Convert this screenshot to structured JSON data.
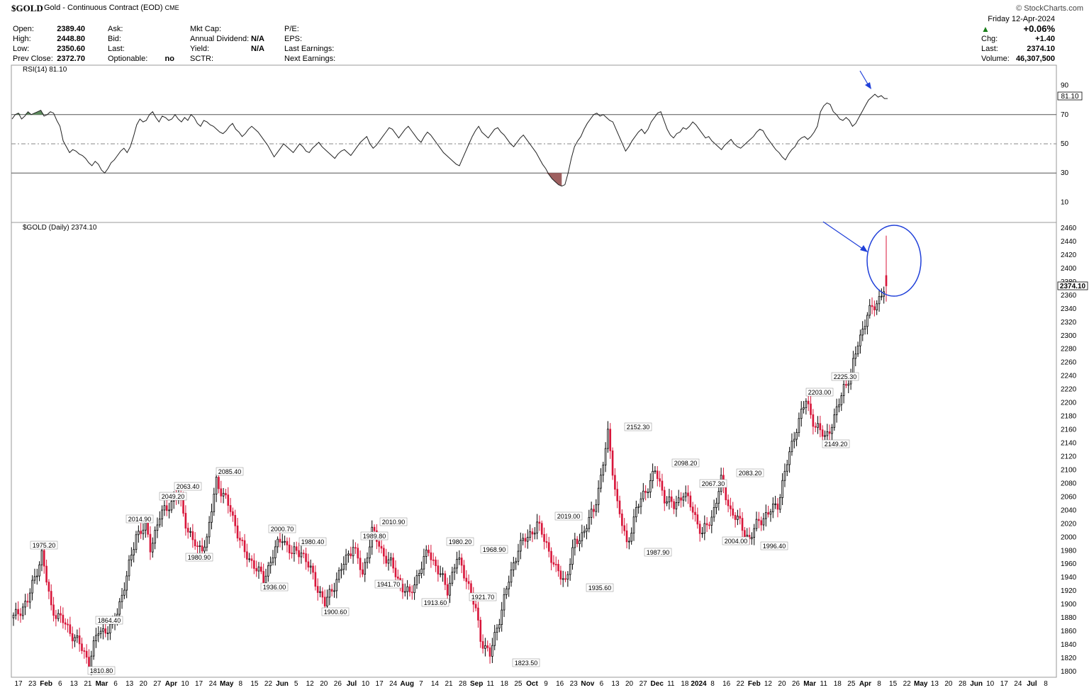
{
  "header": {
    "symbol": "$GOLD",
    "description": "Gold - Continuous Contract (EOD)",
    "exchange": "CME",
    "credit": "© StockCharts.com",
    "col1": [
      {
        "label": "Open:",
        "value": "2389.40"
      },
      {
        "label": "High:",
        "value": "2448.80"
      },
      {
        "label": "Low:",
        "value": "2350.60"
      },
      {
        "label": "Prev Close:",
        "value": "2372.70"
      }
    ],
    "col2": [
      {
        "label": "Ask:",
        "value": ""
      },
      {
        "label": "Bid:",
        "value": ""
      },
      {
        "label": "Last:",
        "value": ""
      },
      {
        "label": "Optionable:",
        "value": "no"
      }
    ],
    "col3": [
      {
        "label": "Mkt Cap:",
        "value": ""
      },
      {
        "label": "Annual Dividend:",
        "value": "N/A"
      },
      {
        "label": "Yield:",
        "value": "N/A"
      },
      {
        "label": "SCTR:",
        "value": ""
      }
    ],
    "col4": [
      {
        "label": "P/E:",
        "value": ""
      },
      {
        "label": "EPS:",
        "value": ""
      },
      {
        "label": "Last Earnings:",
        "value": ""
      },
      {
        "label": "Next Earnings:",
        "value": ""
      }
    ],
    "right": {
      "date": "Friday  12-Apr-2024",
      "pct_change": "+0.06%",
      "chg_label": "Chg:",
      "chg_value": "+1.40",
      "last_label": "Last:",
      "last_value": "2374.10",
      "volume_label": "Volume:",
      "volume_value": "46,307,500"
    }
  },
  "colors": {
    "up_candle": "#000000",
    "down_candle": "#d8163a",
    "rsi_overbought_fill": "#5e8c5e",
    "rsi_oversold_fill": "#9e6060",
    "annotation": "#1f3fd9"
  },
  "chart_data": [
    {
      "type": "line",
      "label": "RSI(14) 81.10",
      "last_value": "81.10",
      "ylim": [
        0,
        100
      ],
      "y_ticks": [
        "90",
        "70",
        "50",
        "30",
        "10"
      ],
      "reference_lines": [
        70,
        50,
        30
      ],
      "values": [
        67,
        70,
        71,
        67,
        69,
        72,
        70,
        71,
        72,
        73,
        69,
        70,
        72,
        71,
        66,
        62,
        52,
        48,
        44,
        46,
        45,
        43,
        42,
        40,
        37,
        35,
        38,
        36,
        32,
        30,
        33,
        37,
        39,
        42,
        45,
        47,
        44,
        48,
        55,
        63,
        67,
        65,
        66,
        70,
        72,
        68,
        65,
        69,
        68,
        66,
        67,
        70,
        67,
        65,
        68,
        66,
        70,
        68,
        64,
        62,
        66,
        65,
        63,
        62,
        60,
        58,
        57,
        59,
        62,
        64,
        60,
        58,
        55,
        57,
        60,
        62,
        60,
        58,
        55,
        52,
        49,
        45,
        41,
        44,
        47,
        50,
        48,
        46,
        44,
        47,
        50,
        48,
        45,
        44,
        47,
        49,
        51,
        48,
        46,
        44,
        42,
        40,
        43,
        45,
        46,
        44,
        42,
        45,
        48,
        51,
        53,
        55,
        50,
        47,
        49,
        52,
        55,
        58,
        61,
        60,
        57,
        54,
        57,
        60,
        62,
        59,
        56,
        53,
        51,
        55,
        58,
        56,
        53,
        50,
        47,
        44,
        42,
        40,
        38,
        36,
        35,
        40,
        45,
        50,
        55,
        59,
        62,
        58,
        56,
        54,
        57,
        60,
        61,
        58,
        56,
        53,
        50,
        48,
        51,
        54,
        56,
        53,
        50,
        47,
        44,
        40,
        36,
        33,
        29,
        26,
        24,
        22,
        21,
        22,
        30,
        40,
        48,
        52,
        55,
        60,
        64,
        67,
        70,
        71,
        69,
        70,
        68,
        66,
        65,
        60,
        55,
        50,
        45,
        48,
        52,
        55,
        58,
        60,
        57,
        60,
        65,
        68,
        71,
        72,
        66,
        60,
        56,
        54,
        57,
        58,
        61,
        60,
        62,
        65,
        63,
        60,
        57,
        54,
        55,
        52,
        50,
        48,
        46,
        49,
        51,
        53,
        50,
        48,
        47,
        49,
        51,
        53,
        55,
        58,
        60,
        59,
        55,
        52,
        49,
        46,
        44,
        41,
        39,
        43,
        46,
        48,
        52,
        54,
        55,
        53,
        55,
        58,
        62,
        72,
        76,
        78,
        77,
        72,
        70,
        67,
        66,
        68,
        66,
        62,
        64,
        68,
        72,
        76,
        80,
        82,
        84,
        82,
        83,
        81,
        81
      ],
      "overbought_spans": [
        [
          0,
          11
        ],
        [
          221,
          230
        ],
        [
          236,
          251
        ]
      ],
      "oversold_spans": [
        [
          166,
          172
        ]
      ]
    },
    {
      "type": "candlestick",
      "label": "$GOLD (Daily) 2374.10",
      "last_value": "2374.10",
      "ylim": [
        1790,
        2470
      ],
      "y_ticks": [
        "2460",
        "2440",
        "2420",
        "2400",
        "2380",
        "2360",
        "2340",
        "2320",
        "2300",
        "2280",
        "2260",
        "2240",
        "2220",
        "2200",
        "2180",
        "2160",
        "2140",
        "2120",
        "2100",
        "2080",
        "2060",
        "2040",
        "2020",
        "2000",
        "1980",
        "1960",
        "1940",
        "1920",
        "1900",
        "1880",
        "1860",
        "1840",
        "1820",
        "1800"
      ],
      "x_labels": [
        "17",
        "23",
        "Feb",
        "6",
        "13",
        "21",
        "Mar",
        "6",
        "13",
        "20",
        "27",
        "Apr",
        "10",
        "17",
        "24",
        "May",
        "8",
        "15",
        "22",
        "Jun",
        "5",
        "12",
        "20",
        "26",
        "Jul",
        "10",
        "17",
        "24",
        "Aug",
        "7",
        "14",
        "21",
        "28",
        "Sep",
        "11",
        "18",
        "25",
        "Oct",
        "9",
        "16",
        "23",
        "Nov",
        "6",
        "13",
        "20",
        "27",
        "Dec",
        "11",
        "18",
        "2024",
        "8",
        "16",
        "22",
        "Feb",
        "12",
        "20",
        "26",
        "Mar",
        "11",
        "18",
        "25",
        "Apr",
        "8",
        "15",
        "22",
        "May",
        "13",
        "20",
        "28",
        "Jun",
        "10",
        "17",
        "24",
        "Jul",
        "8"
      ],
      "anchors": [
        [
          0,
          1880
        ],
        [
          6,
          1905
        ],
        [
          12,
          1975
        ],
        [
          16,
          1895
        ],
        [
          22,
          1870
        ],
        [
          28,
          1840
        ],
        [
          32,
          1815
        ],
        [
          36,
          1860
        ],
        [
          42,
          1865
        ],
        [
          48,
          1940
        ],
        [
          52,
          2005
        ],
        [
          56,
          2014
        ],
        [
          58,
          1985
        ],
        [
          62,
          2030
        ],
        [
          66,
          2049
        ],
        [
          70,
          2063
        ],
        [
          74,
          2010
        ],
        [
          78,
          1981
        ],
        [
          82,
          1995
        ],
        [
          86,
          2085
        ],
        [
          92,
          2040
        ],
        [
          98,
          1975
        ],
        [
          102,
          1960
        ],
        [
          106,
          1936
        ],
        [
          110,
          1975
        ],
        [
          114,
          2000
        ],
        [
          118,
          1975
        ],
        [
          122,
          1980
        ],
        [
          126,
          1950
        ],
        [
          132,
          1900
        ],
        [
          136,
          1930
        ],
        [
          140,
          1960
        ],
        [
          144,
          1989
        ],
        [
          148,
          1942
        ],
        [
          152,
          2010
        ],
        [
          156,
          1980
        ],
        [
          160,
          1960
        ],
        [
          164,
          1930
        ],
        [
          168,
          1913
        ],
        [
          172,
          1950
        ],
        [
          176,
          1980
        ],
        [
          180,
          1950
        ],
        [
          184,
          1922
        ],
        [
          188,
          1968
        ],
        [
          192,
          1940
        ],
        [
          196,
          1890
        ],
        [
          198,
          1850
        ],
        [
          202,
          1824
        ],
        [
          206,
          1880
        ],
        [
          210,
          1935
        ],
        [
          214,
          1985
        ],
        [
          218,
          2000
        ],
        [
          222,
          2019
        ],
        [
          226,
          1990
        ],
        [
          230,
          1950
        ],
        [
          234,
          1936
        ],
        [
          238,
          1990
        ],
        [
          242,
          2010
        ],
        [
          246,
          2040
        ],
        [
          249,
          2090
        ],
        [
          252,
          2152
        ],
        [
          256,
          2050
        ],
        [
          260,
          1988
        ],
        [
          264,
          2040
        ],
        [
          268,
          2070
        ],
        [
          272,
          2098
        ],
        [
          276,
          2060
        ],
        [
          280,
          2045
        ],
        [
          284,
          2067
        ],
        [
          288,
          2040
        ],
        [
          292,
          2004
        ],
        [
          296,
          2030
        ],
        [
          300,
          2083
        ],
        [
          304,
          2040
        ],
        [
          308,
          2020
        ],
        [
          312,
          1996
        ],
        [
          316,
          2025
        ],
        [
          320,
          2035
        ],
        [
          324,
          2050
        ],
        [
          328,
          2110
        ],
        [
          332,
          2165
        ],
        [
          336,
          2203
        ],
        [
          340,
          2165
        ],
        [
          344,
          2149
        ],
        [
          348,
          2175
        ],
        [
          352,
          2225
        ],
        [
          355,
          2240
        ],
        [
          358,
          2290
        ],
        [
          362,
          2330
        ],
        [
          366,
          2350
        ],
        [
          370,
          2374
        ]
      ],
      "annotations": [
        {
          "x": 0,
          "value": "1975.20"
        },
        {
          "x": 0,
          "value": "1864.40"
        },
        {
          "x": 0,
          "value": "1810.80"
        },
        {
          "x": 0,
          "value": "2014.90"
        },
        {
          "x": 0,
          "value": "2049.20"
        },
        {
          "x": 0,
          "value": "2063.40"
        },
        {
          "x": 0,
          "value": "1980.90"
        },
        {
          "x": 0,
          "value": "2085.40"
        },
        {
          "x": 0,
          "value": "2000.70"
        },
        {
          "x": 0,
          "value": "1936.00"
        },
        {
          "x": 0,
          "value": "1980.40"
        },
        {
          "x": 0,
          "value": "1900.60"
        },
        {
          "x": 0,
          "value": "1989.80"
        },
        {
          "x": 0,
          "value": "1941.70"
        },
        {
          "x": 0,
          "value": "2010.90"
        },
        {
          "x": 0,
          "value": "1913.60"
        },
        {
          "x": 0,
          "value": "1980.20"
        },
        {
          "x": 0,
          "value": "1921.70"
        },
        {
          "x": 0,
          "value": "1968.90"
        },
        {
          "x": 0,
          "value": "1823.50"
        },
        {
          "x": 0,
          "value": "2019.00"
        },
        {
          "x": 0,
          "value": "1935.60"
        },
        {
          "x": 0,
          "value": "2152.30"
        },
        {
          "x": 0,
          "value": "1987.90"
        },
        {
          "x": 0,
          "value": "2098.20"
        },
        {
          "x": 0,
          "value": "2067.30"
        },
        {
          "x": 0,
          "value": "2004.00"
        },
        {
          "x": 0,
          "value": "2083.20"
        },
        {
          "x": 0,
          "value": "1996.40"
        },
        {
          "x": 0,
          "value": "2203.00"
        },
        {
          "x": 0,
          "value": "2149.20"
        },
        {
          "x": 0,
          "value": "2225.30"
        }
      ],
      "final_candle": {
        "open": 2389.4,
        "high": 2448.8,
        "low": 2350.6,
        "close": 2374.1
      }
    }
  ]
}
